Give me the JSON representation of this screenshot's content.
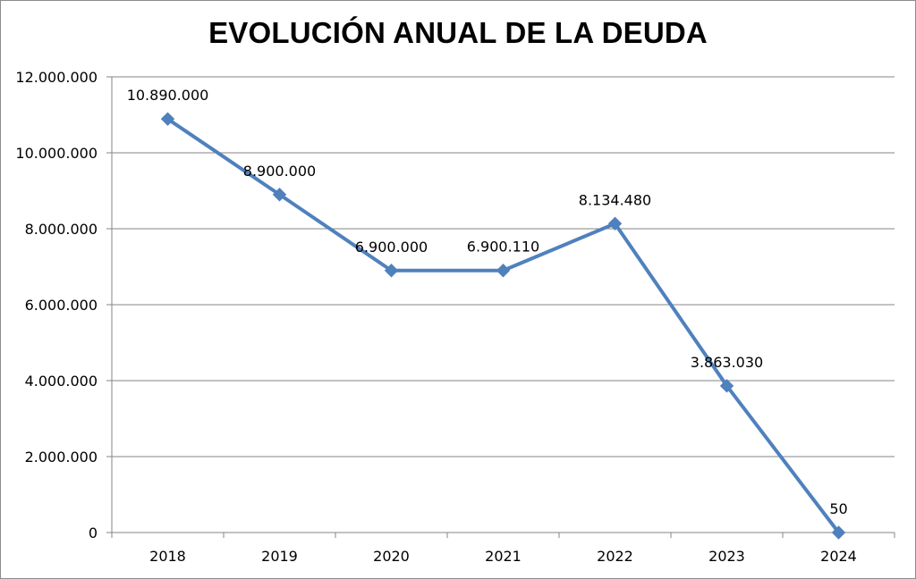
{
  "chart_data": {
    "type": "line",
    "title": "EVOLUCIÓN ANUAL DE LA DEUDA",
    "xlabel": "",
    "ylabel": "",
    "categories": [
      "2018",
      "2019",
      "2020",
      "2021",
      "2022",
      "2023",
      "2024"
    ],
    "series": [
      {
        "values": [
          10890000,
          8900000,
          6900000,
          6900110,
          8134480,
          3863030,
          50
        ],
        "data_labels": [
          "10.890.000",
          "8.900.000",
          "6.900.000",
          "6.900.110",
          "8.134.480",
          "3.863.030",
          "50"
        ],
        "color": "#4f81bd",
        "marker": "diamond"
      }
    ],
    "ylim": [
      0,
      12000000
    ],
    "yticks": [
      0,
      2000000,
      4000000,
      6000000,
      8000000,
      10000000,
      12000000
    ],
    "ytick_labels": [
      "0",
      "2.000.000",
      "4.000.000",
      "6.000.000",
      "8.000.000",
      "10.000.000",
      "12.000.000"
    ],
    "grid": true,
    "legend": "none"
  }
}
